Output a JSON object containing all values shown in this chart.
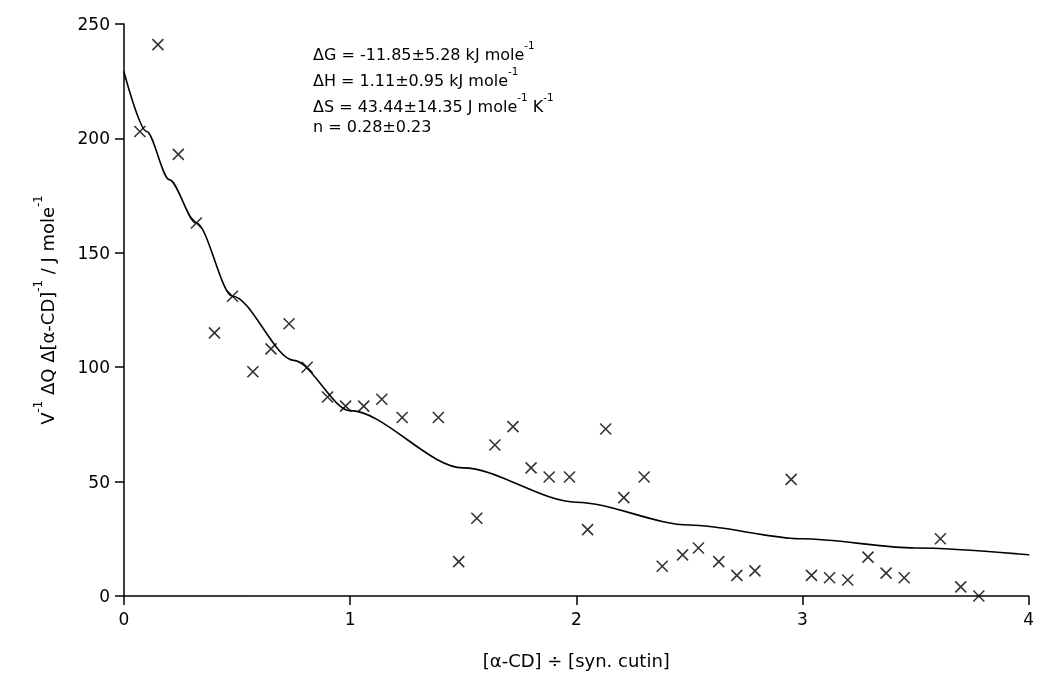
{
  "chart_data": {
    "type": "scatter",
    "xlabel": "[α-CD] ÷ [syn. cutin]",
    "ylabel": "V$^{-1}$ ΔQ Δ[α-CD]$^{-1}$ / J mole$^{-1}$",
    "annotations": [
      "ΔG = -11.85±5.28 kJ mole$^{-1}$",
      "ΔH = 1.11±0.95 kJ mole$^{-1}$",
      "ΔS = 43.44±14.35 J mole$^{-1}$ K$^{-1}$",
      "n = 0.28±0.23"
    ],
    "xlim": [
      0,
      4
    ],
    "xticks": [
      0,
      1,
      2,
      3,
      4
    ],
    "ylim": [
      0,
      250
    ],
    "yticks": [
      0,
      50,
      100,
      150,
      200,
      250
    ],
    "grid": false,
    "series": [
      {
        "color": "#000000",
        "marker": "cross",
        "x": [
          0.07,
          0.15,
          0.24,
          0.32,
          0.4,
          0.48,
          0.57,
          0.65,
          0.73,
          0.81,
          0.9,
          0.98,
          1.06,
          1.14,
          1.23,
          1.39,
          1.48,
          1.56,
          1.64,
          1.72,
          1.8,
          1.88,
          1.97,
          2.05,
          2.13,
          2.21,
          2.3,
          2.38,
          2.47,
          2.54,
          2.63,
          2.71,
          2.79,
          2.95,
          3.04,
          3.12,
          3.2,
          3.29,
          3.37,
          3.45,
          3.61,
          3.7,
          3.78
        ],
        "values": [
          203,
          241,
          193,
          163,
          115,
          131,
          98,
          108,
          119,
          100,
          87,
          83,
          83,
          86,
          78,
          78,
          15,
          34,
          66,
          74,
          56,
          52,
          52,
          29,
          73,
          43,
          52,
          13,
          18,
          21,
          15,
          9,
          11,
          51,
          9,
          8,
          7,
          17,
          10,
          8,
          25,
          4,
          0
        ]
      },
      {
        "type": "line",
        "color": "#000000",
        "marker": "none",
        "line_style": "solid",
        "x": [
          0,
          0.1,
          0.2,
          0.32,
          0.48,
          0.75,
          1,
          1.5,
          2,
          2.5,
          3,
          3.5,
          4
        ],
        "values": [
          229,
          203,
          182,
          163,
          131,
          103,
          81,
          56,
          41,
          31,
          25,
          21,
          18
        ]
      }
    ]
  }
}
